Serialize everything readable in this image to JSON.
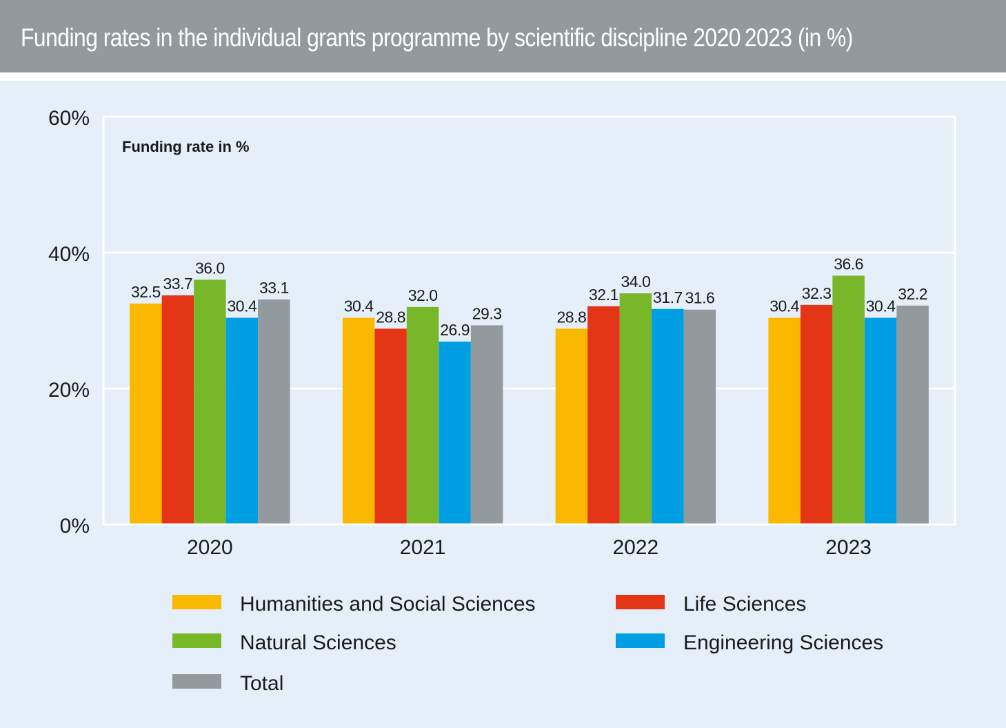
{
  "title": "Funding rates in the individual grants programme by scientific discipline 2020 2023 (in %)",
  "colors": {
    "header_bg": "#939a9d",
    "panel_bg": "#e5eff9",
    "humanities": "#fbb800",
    "life": "#e53517",
    "natural": "#78b72a",
    "engineering": "#009fe3",
    "total": "#939a9d"
  },
  "chart_data": {
    "type": "bar",
    "title": "Funding rates in the individual grants programme by scientific discipline 2020 2023 (in %)",
    "inner_label": "Funding rate in %",
    "categories": [
      "2020",
      "2021",
      "2022",
      "2023"
    ],
    "ylim": [
      0,
      60
    ],
    "yticks": [
      "0%",
      "20%",
      "40%",
      "60%"
    ],
    "ytick_values": [
      0,
      20,
      40,
      60
    ],
    "grid": true,
    "legend_placement": "bottom",
    "series": [
      {
        "name": "Humanities and Social Sciences",
        "values": [
          32.5,
          30.4,
          28.8,
          30.4
        ],
        "labels": [
          "32.5",
          "30.4",
          "28.8",
          "30.4"
        ],
        "color": "#fbb800"
      },
      {
        "name": "Life Sciences",
        "values": [
          33.7,
          28.8,
          32.1,
          32.3
        ],
        "labels": [
          "33.7",
          "28.8",
          "32.1",
          "32.3"
        ],
        "color": "#e53517"
      },
      {
        "name": "Natural Sciences",
        "values": [
          36.0,
          32.0,
          34.0,
          36.6
        ],
        "labels": [
          "36.0",
          "32.0",
          "34.0",
          "36.6"
        ],
        "color": "#78b72a"
      },
      {
        "name": "Engineering Sciences",
        "values": [
          30.4,
          26.9,
          31.7,
          30.4
        ],
        "labels": [
          "30.4",
          "26.9",
          "31.7",
          "30.4"
        ],
        "color": "#009fe3"
      },
      {
        "name": "Total",
        "values": [
          33.1,
          29.3,
          31.6,
          32.2
        ],
        "labels": [
          "33.1",
          "29.3",
          "31.6",
          "32.2"
        ],
        "color": "#939a9d"
      }
    ]
  }
}
